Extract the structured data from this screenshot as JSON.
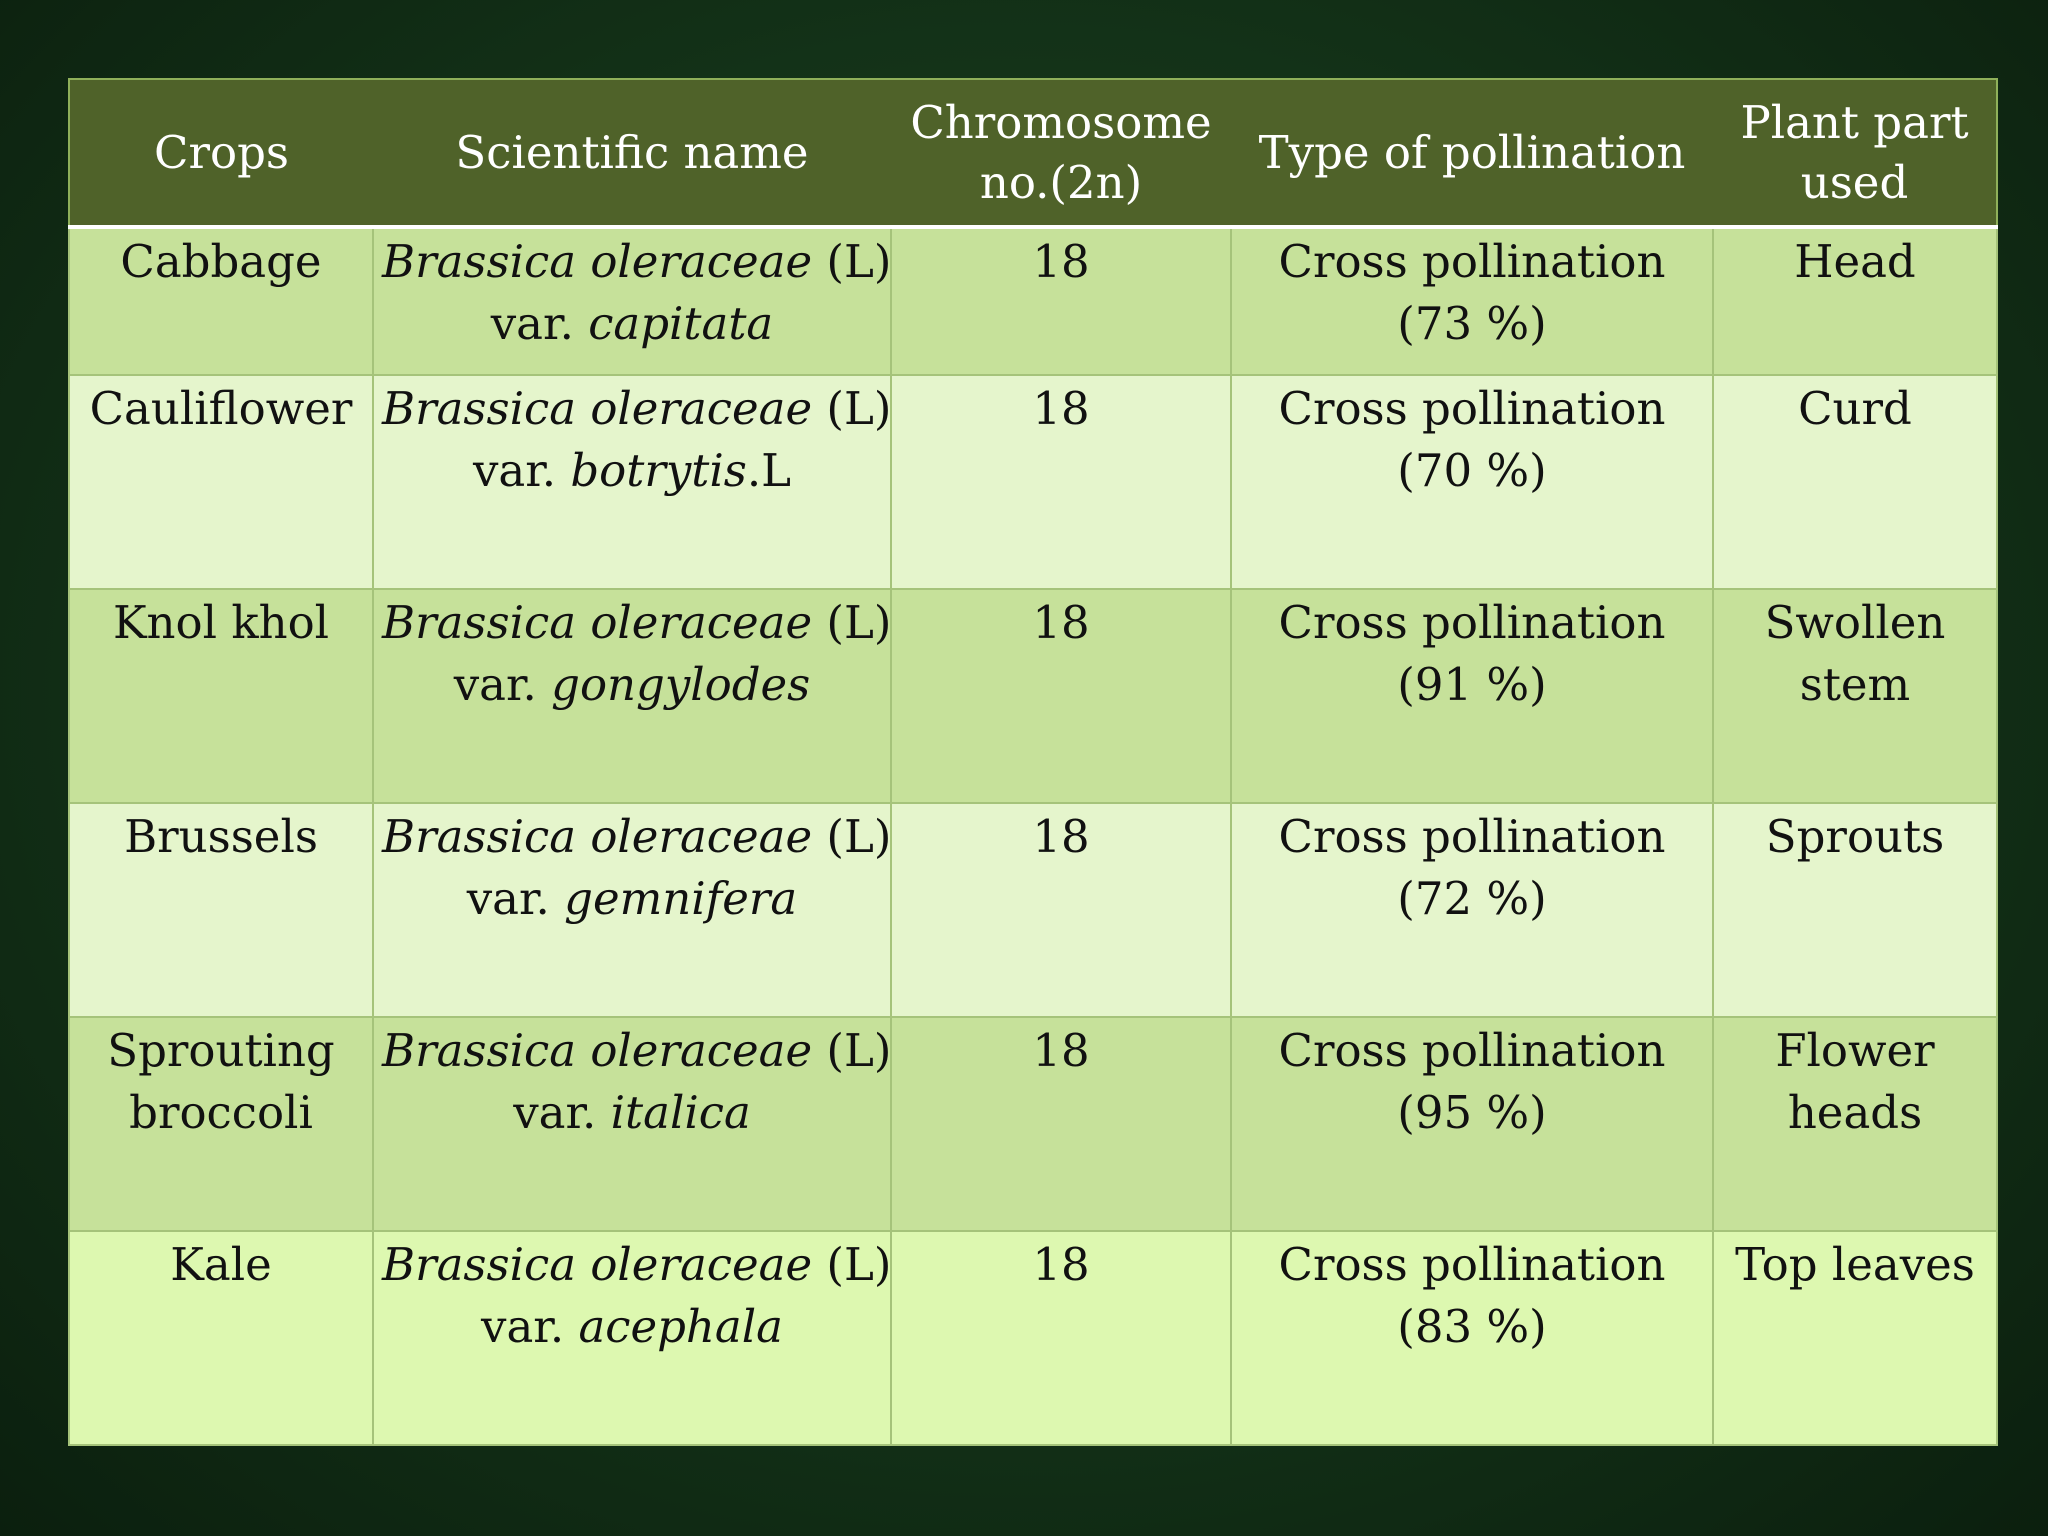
{
  "table": {
    "headers": [
      {
        "line1": "Crops",
        "line2": ""
      },
      {
        "line1": "Scientific name",
        "line2": ""
      },
      {
        "line1": "Chromosome",
        "line2": "no.(2n)"
      },
      {
        "line1": "Type of pollination",
        "line2": ""
      },
      {
        "line1": "Plant part",
        "line2": "used"
      }
    ],
    "rows": [
      {
        "crop": [
          "Cabbage"
        ],
        "sci_genus": "Brassica oleraceae",
        "sci_auth": " (L)",
        "sci_var_prefix": "var. ",
        "sci_var": "capitata",
        "sci_var_suffix": "",
        "chromosome": "18",
        "pollination": "Cross pollination",
        "pollination_pct": "(73 %)",
        "part": [
          "Head"
        ]
      },
      {
        "crop": [
          "Cauliflower"
        ],
        "sci_genus": "Brassica oleraceae",
        "sci_auth": " (L)",
        "sci_var_prefix": "var. ",
        "sci_var": "botrytis",
        "sci_var_suffix": ".L",
        "chromosome": "18",
        "pollination": "Cross pollination",
        "pollination_pct": "(70 %)",
        "part": [
          "Curd"
        ]
      },
      {
        "crop": [
          "Knol khol"
        ],
        "sci_genus": "Brassica oleraceae",
        "sci_auth": " (L)",
        "sci_var_prefix": "var. ",
        "sci_var": "gongylodes",
        "sci_var_suffix": "",
        "chromosome": "18",
        "pollination": "Cross pollination",
        "pollination_pct": "(91 %)",
        "part": [
          "Swollen",
          "stem"
        ]
      },
      {
        "crop": [
          "Brussels"
        ],
        "sci_genus": "Brassica oleraceae",
        "sci_auth": " (L)",
        "sci_var_prefix": "var. ",
        "sci_var": "gemnifera",
        "sci_var_suffix": "",
        "chromosome": "18",
        "pollination": "Cross pollination",
        "pollination_pct": "(72 %)",
        "part": [
          "Sprouts"
        ]
      },
      {
        "crop": [
          "Sprouting",
          "broccoli"
        ],
        "sci_genus": "Brassica oleraceae",
        "sci_auth": " (L)",
        "sci_var_prefix": "var. ",
        "sci_var": "italica",
        "sci_var_suffix": "",
        "chromosome": "18",
        "pollination": "Cross pollination",
        "pollination_pct": "(95 %)",
        "part": [
          "Flower",
          "heads"
        ]
      },
      {
        "crop": [
          "Kale"
        ],
        "sci_genus": "Brassica oleraceae",
        "sci_auth": " (L)",
        "sci_var_prefix": "var. ",
        "sci_var": "acephala",
        "sci_var_suffix": "",
        "chromosome": "18",
        "pollination": "Cross pollination",
        "pollination_pct": "(83 %)",
        "part": [
          "Top leaves"
        ]
      }
    ]
  }
}
